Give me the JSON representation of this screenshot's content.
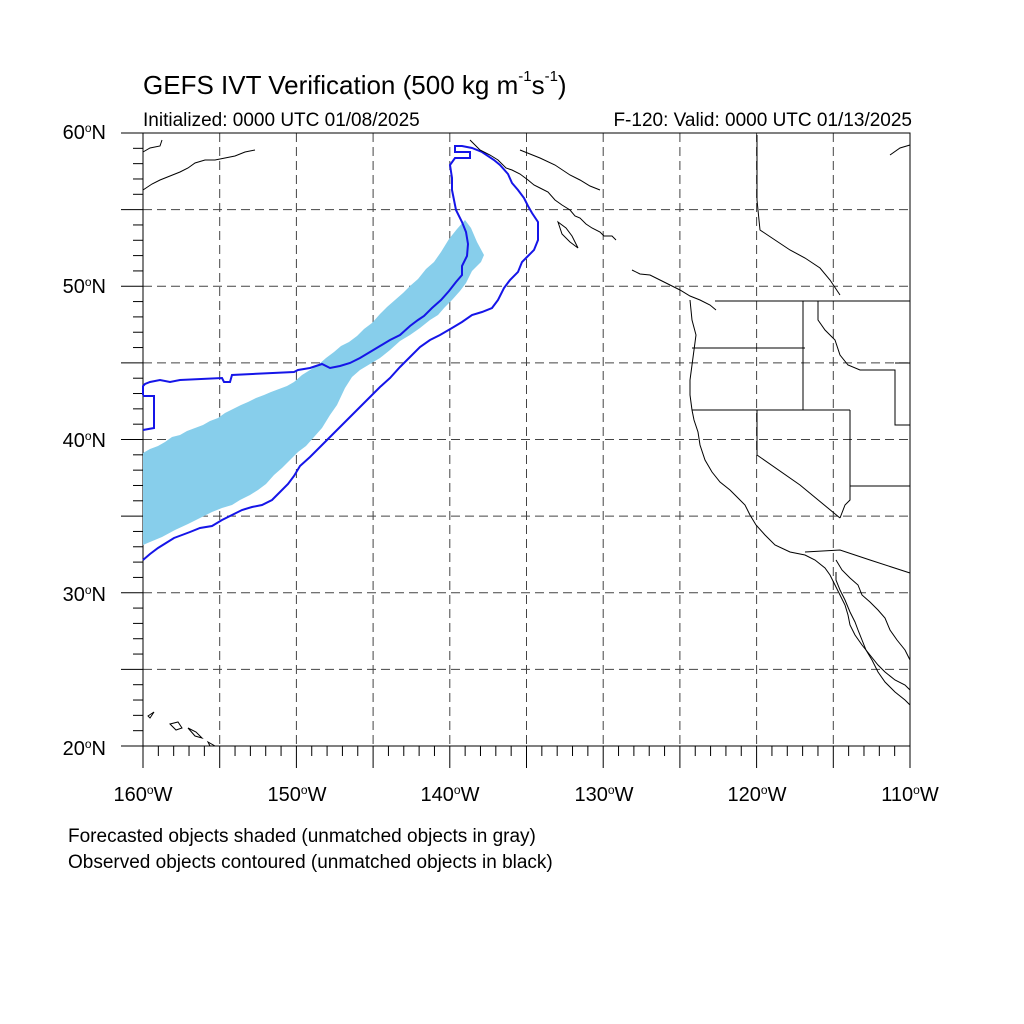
{
  "title": {
    "main": "GEFS IVT Verification (500 kg m",
    "exp1": "-1",
    "mid": "s",
    "exp2": "-1",
    "end": ")"
  },
  "subtitle": {
    "left": "Initialized: 0000 UTC 01/08/2025",
    "right": "F-120: Valid: 0000 UTC 01/13/2025"
  },
  "axes": {
    "lat_labels": [
      {
        "num": "60",
        "deg": "o",
        "dir": "N"
      },
      {
        "num": "50",
        "deg": "o",
        "dir": "N"
      },
      {
        "num": "40",
        "deg": "o",
        "dir": "N"
      },
      {
        "num": "30",
        "deg": "o",
        "dir": "N"
      },
      {
        "num": "20",
        "deg": "o",
        "dir": "N"
      }
    ],
    "lon_labels": [
      {
        "num": "160",
        "deg": "o",
        "dir": "W"
      },
      {
        "num": "150",
        "deg": "o",
        "dir": "W"
      },
      {
        "num": "140",
        "deg": "o",
        "dir": "W"
      },
      {
        "num": "130",
        "deg": "o",
        "dir": "W"
      },
      {
        "num": "120",
        "deg": "o",
        "dir": "W"
      },
      {
        "num": "110",
        "deg": "o",
        "dir": "W"
      }
    ],
    "lat_range": [
      20,
      60
    ],
    "lon_range": [
      -160,
      -110
    ],
    "grid": true
  },
  "legend": {
    "line1": "Forecasted objects shaded (unmatched objects in gray)",
    "line2": "Observed objects contoured (unmatched objects in black)"
  },
  "colors": {
    "forecast_fill": "#87ceeb",
    "observed_contour": "#1515e8",
    "coast": "#000000",
    "grid": "#444444"
  }
}
